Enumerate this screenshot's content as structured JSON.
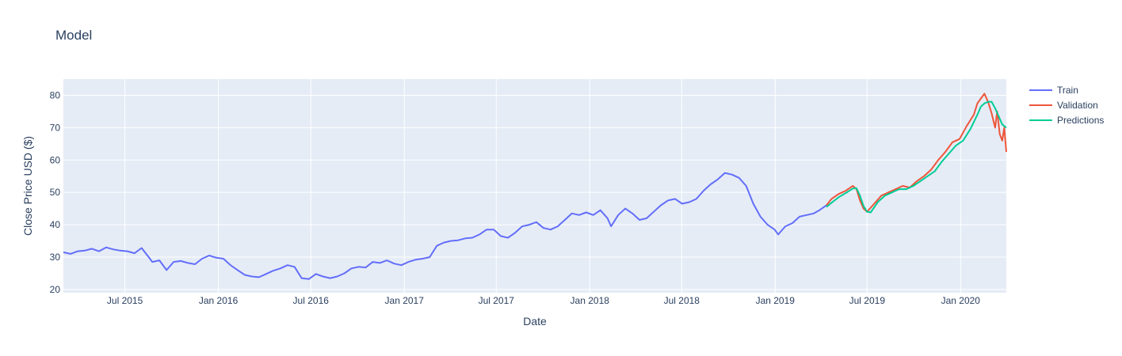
{
  "chart_data": {
    "type": "line",
    "title": "Model",
    "xlabel": "Date",
    "ylabel": "Close Price USD ($)",
    "x_range": [
      "2015-03-02",
      "2020-03-31"
    ],
    "ylim": [
      19,
      85
    ],
    "x_ticks": [
      {
        "date": "2015-07-01",
        "label": "Jul 2015"
      },
      {
        "date": "2016-01-01",
        "label": "Jan 2016"
      },
      {
        "date": "2016-07-01",
        "label": "Jul 2016"
      },
      {
        "date": "2017-01-01",
        "label": "Jan 2017"
      },
      {
        "date": "2017-07-01",
        "label": "Jul 2017"
      },
      {
        "date": "2018-01-01",
        "label": "Jan 2018"
      },
      {
        "date": "2018-07-01",
        "label": "Jul 2018"
      },
      {
        "date": "2019-01-01",
        "label": "Jan 2019"
      },
      {
        "date": "2019-07-01",
        "label": "Jul 2019"
      },
      {
        "date": "2020-01-01",
        "label": "Jan 2020"
      }
    ],
    "y_ticks": [
      20,
      30,
      40,
      50,
      60,
      70,
      80
    ],
    "grid": true,
    "legend_position": "top-right",
    "series": [
      {
        "name": "Train",
        "color": "#636efa",
        "points": [
          [
            "2015-03-02",
            31.5
          ],
          [
            "2015-03-16",
            31.0
          ],
          [
            "2015-03-30",
            31.8
          ],
          [
            "2015-04-13",
            32.0
          ],
          [
            "2015-04-27",
            32.6
          ],
          [
            "2015-05-11",
            31.8
          ],
          [
            "2015-05-25",
            33.0
          ],
          [
            "2015-06-08",
            32.4
          ],
          [
            "2015-06-22",
            32.0
          ],
          [
            "2015-07-06",
            31.8
          ],
          [
            "2015-07-20",
            31.2
          ],
          [
            "2015-08-03",
            32.8
          ],
          [
            "2015-08-17",
            30.0
          ],
          [
            "2015-08-24",
            28.5
          ],
          [
            "2015-09-07",
            29.0
          ],
          [
            "2015-09-21",
            26.0
          ],
          [
            "2015-10-05",
            28.5
          ],
          [
            "2015-10-19",
            28.8
          ],
          [
            "2015-11-02",
            28.2
          ],
          [
            "2015-11-16",
            27.8
          ],
          [
            "2015-11-30",
            29.5
          ],
          [
            "2015-12-14",
            30.5
          ],
          [
            "2015-12-28",
            29.8
          ],
          [
            "2016-01-11",
            29.5
          ],
          [
            "2016-01-25",
            27.5
          ],
          [
            "2016-02-08",
            26.0
          ],
          [
            "2016-02-22",
            24.5
          ],
          [
            "2016-03-07",
            24.0
          ],
          [
            "2016-03-21",
            23.8
          ],
          [
            "2016-04-04",
            24.8
          ],
          [
            "2016-04-18",
            25.8
          ],
          [
            "2016-05-02",
            26.5
          ],
          [
            "2016-05-16",
            27.5
          ],
          [
            "2016-05-30",
            27.0
          ],
          [
            "2016-06-13",
            23.5
          ],
          [
            "2016-06-27",
            23.2
          ],
          [
            "2016-07-11",
            24.8
          ],
          [
            "2016-07-25",
            24.0
          ],
          [
            "2016-08-08",
            23.5
          ],
          [
            "2016-08-22",
            24.0
          ],
          [
            "2016-09-05",
            25.0
          ],
          [
            "2016-09-19",
            26.5
          ],
          [
            "2016-10-03",
            27.0
          ],
          [
            "2016-10-17",
            26.8
          ],
          [
            "2016-10-31",
            28.5
          ],
          [
            "2016-11-14",
            28.2
          ],
          [
            "2016-11-28",
            29.0
          ],
          [
            "2016-12-12",
            28.0
          ],
          [
            "2016-12-26",
            27.5
          ],
          [
            "2017-01-09",
            28.5
          ],
          [
            "2017-01-23",
            29.2
          ],
          [
            "2017-02-06",
            29.5
          ],
          [
            "2017-02-20",
            30.0
          ],
          [
            "2017-03-06",
            33.5
          ],
          [
            "2017-03-20",
            34.5
          ],
          [
            "2017-04-03",
            35.0
          ],
          [
            "2017-04-17",
            35.2
          ],
          [
            "2017-05-01",
            35.8
          ],
          [
            "2017-05-15",
            36.0
          ],
          [
            "2017-05-29",
            37.0
          ],
          [
            "2017-06-12",
            38.5
          ],
          [
            "2017-06-26",
            38.5
          ],
          [
            "2017-07-10",
            36.5
          ],
          [
            "2017-07-24",
            36.0
          ],
          [
            "2017-08-07",
            37.5
          ],
          [
            "2017-08-21",
            39.5
          ],
          [
            "2017-09-04",
            40.0
          ],
          [
            "2017-09-18",
            40.8
          ],
          [
            "2017-10-02",
            39.0
          ],
          [
            "2017-10-16",
            38.5
          ],
          [
            "2017-10-30",
            39.5
          ],
          [
            "2017-11-13",
            41.5
          ],
          [
            "2017-11-27",
            43.5
          ],
          [
            "2017-12-11",
            43.0
          ],
          [
            "2017-12-25",
            43.8
          ],
          [
            "2018-01-08",
            43.0
          ],
          [
            "2018-01-22",
            44.5
          ],
          [
            "2018-02-05",
            42.0
          ],
          [
            "2018-02-12",
            39.5
          ],
          [
            "2018-02-26",
            43.0
          ],
          [
            "2018-03-12",
            45.0
          ],
          [
            "2018-03-26",
            43.5
          ],
          [
            "2018-04-09",
            41.5
          ],
          [
            "2018-04-23",
            42.0
          ],
          [
            "2018-05-07",
            44.0
          ],
          [
            "2018-05-21",
            46.0
          ],
          [
            "2018-06-04",
            47.5
          ],
          [
            "2018-06-18",
            48.0
          ],
          [
            "2018-07-02",
            46.5
          ],
          [
            "2018-07-16",
            47.0
          ],
          [
            "2018-07-30",
            48.0
          ],
          [
            "2018-08-13",
            50.5
          ],
          [
            "2018-08-27",
            52.5
          ],
          [
            "2018-09-10",
            54.0
          ],
          [
            "2018-09-24",
            56.0
          ],
          [
            "2018-10-08",
            55.5
          ],
          [
            "2018-10-22",
            54.5
          ],
          [
            "2018-11-05",
            52.0
          ],
          [
            "2018-11-19",
            46.5
          ],
          [
            "2018-12-03",
            42.5
          ],
          [
            "2018-12-17",
            40.0
          ],
          [
            "2018-12-31",
            38.5
          ],
          [
            "2019-01-07",
            37.0
          ],
          [
            "2019-01-21",
            39.5
          ],
          [
            "2019-02-04",
            40.5
          ],
          [
            "2019-02-18",
            42.5
          ],
          [
            "2019-03-04",
            43.0
          ],
          [
            "2019-03-18",
            43.5
          ],
          [
            "2019-03-29",
            44.5
          ],
          [
            "2019-04-12",
            46.0
          ]
        ]
      },
      {
        "name": "Validation",
        "color": "#ef553b",
        "points": [
          [
            "2019-04-12",
            46.0
          ],
          [
            "2019-04-22",
            48.0
          ],
          [
            "2019-05-06",
            49.5
          ],
          [
            "2019-05-20",
            50.5
          ],
          [
            "2019-06-03",
            52.0
          ],
          [
            "2019-06-10",
            51.0
          ],
          [
            "2019-06-17",
            47.5
          ],
          [
            "2019-06-24",
            45.0
          ],
          [
            "2019-07-01",
            44.0
          ],
          [
            "2019-07-15",
            46.5
          ],
          [
            "2019-07-29",
            49.0
          ],
          [
            "2019-08-12",
            50.0
          ],
          [
            "2019-08-26",
            51.0
          ],
          [
            "2019-09-09",
            52.0
          ],
          [
            "2019-09-23",
            51.5
          ],
          [
            "2019-10-07",
            53.5
          ],
          [
            "2019-10-21",
            55.0
          ],
          [
            "2019-11-04",
            57.0
          ],
          [
            "2019-11-18",
            60.0
          ],
          [
            "2019-12-02",
            62.5
          ],
          [
            "2019-12-16",
            65.5
          ],
          [
            "2019-12-30",
            66.5
          ],
          [
            "2020-01-13",
            70.5
          ],
          [
            "2020-01-27",
            74.0
          ],
          [
            "2020-02-03",
            77.5
          ],
          [
            "2020-02-10",
            79.0
          ],
          [
            "2020-02-17",
            80.5
          ],
          [
            "2020-02-24",
            78.0
          ],
          [
            "2020-03-02",
            74.5
          ],
          [
            "2020-03-09",
            70.0
          ],
          [
            "2020-03-13",
            75.0
          ],
          [
            "2020-03-18",
            68.0
          ],
          [
            "2020-03-23",
            66.0
          ],
          [
            "2020-03-27",
            70.0
          ],
          [
            "2020-03-31",
            62.5
          ]
        ]
      },
      {
        "name": "Predictions",
        "color": "#00cc96",
        "points": [
          [
            "2019-04-12",
            45.5
          ],
          [
            "2019-04-22",
            46.8
          ],
          [
            "2019-05-06",
            48.5
          ],
          [
            "2019-05-20",
            49.8
          ],
          [
            "2019-06-03",
            51.2
          ],
          [
            "2019-06-10",
            51.3
          ],
          [
            "2019-06-17",
            49.0
          ],
          [
            "2019-06-24",
            45.8
          ],
          [
            "2019-07-01",
            44.0
          ],
          [
            "2019-07-08",
            43.8
          ],
          [
            "2019-07-22",
            47.0
          ],
          [
            "2019-08-05",
            49.0
          ],
          [
            "2019-08-19",
            50.0
          ],
          [
            "2019-09-02",
            51.0
          ],
          [
            "2019-09-16",
            51.0
          ],
          [
            "2019-09-30",
            52.0
          ],
          [
            "2019-10-14",
            53.5
          ],
          [
            "2019-10-28",
            55.0
          ],
          [
            "2019-11-11",
            56.5
          ],
          [
            "2019-11-25",
            59.5
          ],
          [
            "2019-12-09",
            62.0
          ],
          [
            "2019-12-23",
            64.5
          ],
          [
            "2020-01-06",
            66.0
          ],
          [
            "2020-01-20",
            69.5
          ],
          [
            "2020-02-03",
            74.0
          ],
          [
            "2020-02-10",
            76.5
          ],
          [
            "2020-02-17",
            77.5
          ],
          [
            "2020-02-24",
            78.0
          ],
          [
            "2020-03-02",
            78.0
          ],
          [
            "2020-03-09",
            76.0
          ],
          [
            "2020-03-16",
            73.5
          ],
          [
            "2020-03-23",
            71.0
          ],
          [
            "2020-03-31",
            70.0
          ]
        ]
      }
    ]
  }
}
